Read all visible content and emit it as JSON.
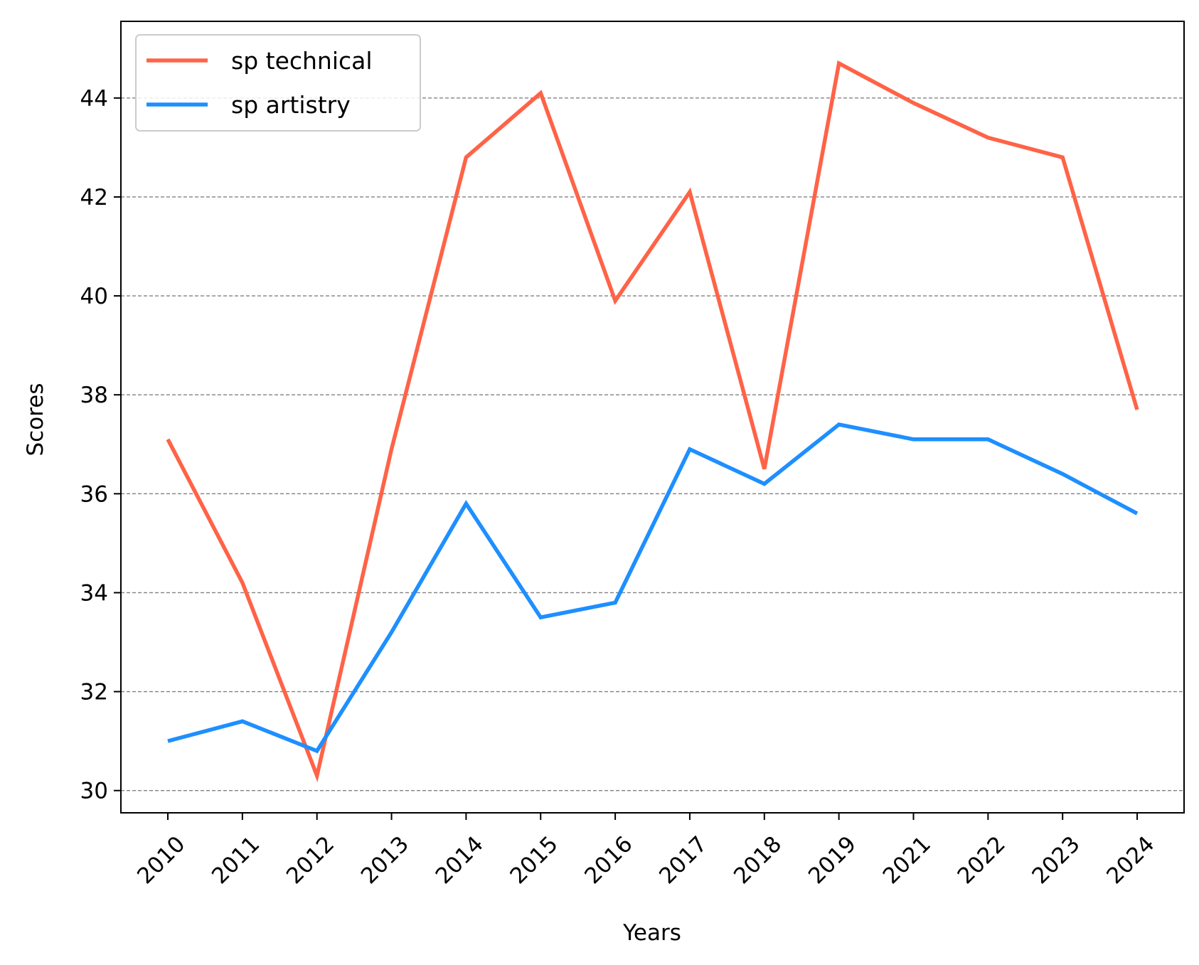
{
  "chart_data": {
    "type": "line",
    "title": "",
    "xlabel": "Years",
    "ylabel": "Scores",
    "categories": [
      "2010",
      "2011",
      "2012",
      "2013",
      "2014",
      "2015",
      "2016",
      "2017",
      "2018",
      "2019",
      "2021",
      "2022",
      "2023",
      "2024"
    ],
    "ylim": [
      29.55,
      45.55
    ],
    "yticks": [
      30,
      32,
      34,
      36,
      38,
      40,
      42,
      44
    ],
    "grid": "horizontal-dashed",
    "legend_position": "top-left",
    "series": [
      {
        "name": "sp technical",
        "color": "#ff6347",
        "values": [
          37.1,
          34.2,
          30.3,
          36.9,
          42.8,
          44.1,
          39.9,
          42.1,
          36.5,
          44.7,
          43.9,
          43.2,
          42.8,
          37.7
        ]
      },
      {
        "name": "sp artistry",
        "color": "#1e8fff",
        "values": [
          31.0,
          31.4,
          30.8,
          33.2,
          35.8,
          33.5,
          33.8,
          36.9,
          36.2,
          37.4,
          37.1,
          37.1,
          36.4,
          35.6
        ]
      }
    ]
  }
}
